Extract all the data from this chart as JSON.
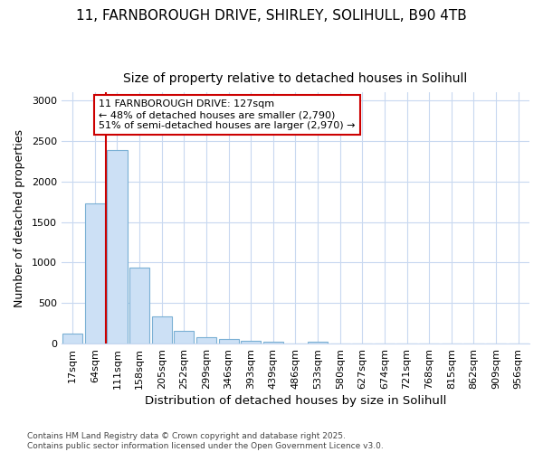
{
  "title_line1": "11, FARNBOROUGH DRIVE, SHIRLEY, SOLIHULL, B90 4TB",
  "title_line2": "Size of property relative to detached houses in Solihull",
  "xlabel": "Distribution of detached houses by size in Solihull",
  "ylabel": "Number of detached properties",
  "categories": [
    "17sqm",
    "64sqm",
    "111sqm",
    "158sqm",
    "205sqm",
    "252sqm",
    "299sqm",
    "346sqm",
    "393sqm",
    "439sqm",
    "486sqm",
    "533sqm",
    "580sqm",
    "627sqm",
    "674sqm",
    "721sqm",
    "768sqm",
    "815sqm",
    "862sqm",
    "909sqm",
    "956sqm"
  ],
  "values": [
    120,
    1730,
    2390,
    940,
    335,
    155,
    80,
    55,
    30,
    20,
    0,
    20,
    0,
    0,
    0,
    0,
    0,
    0,
    0,
    0,
    0
  ],
  "bar_color": "#cce0f5",
  "bar_edge_color": "#7ab0d4",
  "vline_x": 1.5,
  "vline_color": "#cc0000",
  "annotation_text": "11 FARNBOROUGH DRIVE: 127sqm\n← 48% of detached houses are smaller (2,790)\n51% of semi-detached houses are larger (2,970) →",
  "annotation_box_facecolor": "#ffffff",
  "annotation_box_edgecolor": "#cc0000",
  "ylim": [
    0,
    3100
  ],
  "yticks": [
    0,
    500,
    1000,
    1500,
    2000,
    2500,
    3000
  ],
  "footnote": "Contains HM Land Registry data © Crown copyright and database right 2025.\nContains public sector information licensed under the Open Government Licence v3.0.",
  "bg_color": "#ffffff",
  "grid_color": "#c8d8f0",
  "title_fontsize": 11,
  "subtitle_fontsize": 10,
  "xlabel_fontsize": 9.5,
  "ylabel_fontsize": 9,
  "tick_fontsize": 8,
  "annot_fontsize": 8,
  "footnote_fontsize": 6.5
}
